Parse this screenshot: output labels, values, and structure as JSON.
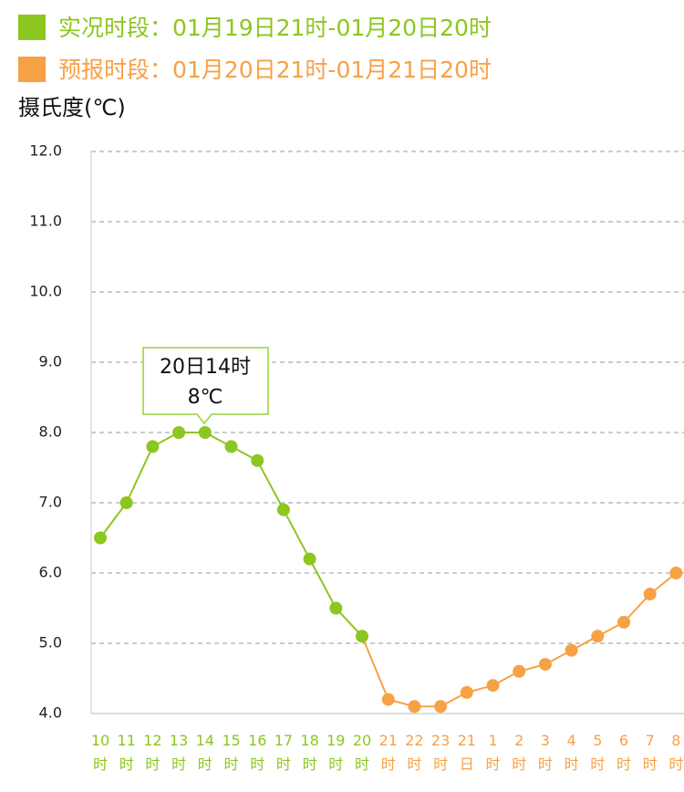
{
  "chart_data": {
    "type": "line",
    "legend": [
      {
        "text": "实况时段：01月19日21时-01月20日20时",
        "color": "#8cc620"
      },
      {
        "text": "预报时段：01月20日21时-01月21日20时",
        "color": "#f7a145"
      }
    ],
    "y_label": "摄氏度(℃)",
    "categories": [
      "10时",
      "11时",
      "12时",
      "13时",
      "14时",
      "15时",
      "16时",
      "17时",
      "18时",
      "19时",
      "20时",
      "21时",
      "22时",
      "23时",
      "21日",
      "1时",
      "2时",
      "3时",
      "4时",
      "5时",
      "6时",
      "7时",
      "8时"
    ],
    "series": [
      {
        "name": "实况",
        "color": "#8cc620",
        "values": [
          6.5,
          7.0,
          7.8,
          8.0,
          8.0,
          7.8,
          7.6,
          6.9,
          6.2,
          5.5,
          5.1,
          null,
          null,
          null,
          null,
          null,
          null,
          null,
          null,
          null,
          null,
          null,
          null
        ]
      },
      {
        "name": "预报",
        "color": "#f7a145",
        "values": [
          null,
          null,
          null,
          null,
          null,
          null,
          null,
          null,
          null,
          null,
          null,
          4.2,
          4.1,
          4.1,
          4.3,
          4.4,
          4.6,
          4.7,
          4.9,
          5.1,
          5.3,
          5.7,
          6.0
        ]
      }
    ],
    "ylim": [
      4,
      12
    ],
    "yticks": [
      {
        "value": 4,
        "label": "4.0"
      },
      {
        "value": 5,
        "label": "5.0"
      },
      {
        "value": 6,
        "label": "6.0"
      },
      {
        "value": 7,
        "label": "7.0"
      },
      {
        "value": 8,
        "label": "8.0"
      },
      {
        "value": 9,
        "label": "9.0"
      },
      {
        "value": 10,
        "label": "10.0"
      },
      {
        "value": 11,
        "label": "11.0"
      },
      {
        "value": 12,
        "label": "12.0"
      }
    ],
    "grid": true,
    "tooltip": {
      "title": "20日14时",
      "value": "8℃"
    }
  }
}
